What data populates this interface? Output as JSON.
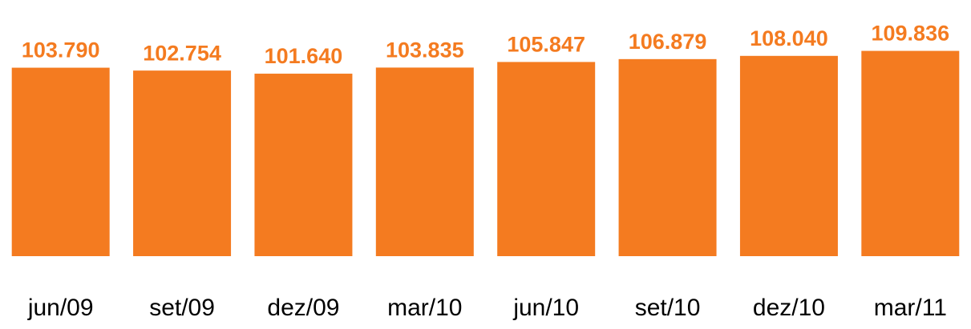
{
  "chart_data": {
    "type": "bar",
    "categories": [
      "jun/09",
      "set/09",
      "dez/09",
      "mar/10",
      "jun/10",
      "set/10",
      "dez/10",
      "mar/11"
    ],
    "values": [
      103790,
      102754,
      101640,
      103835,
      105847,
      106879,
      108040,
      109836
    ],
    "value_labels": [
      "103.790",
      "102.754",
      "101.640",
      "103.835",
      "105.847",
      "106.879",
      "108.040",
      "109.836"
    ],
    "color": "#f47b20",
    "ylim": [
      36000,
      110000
    ]
  }
}
